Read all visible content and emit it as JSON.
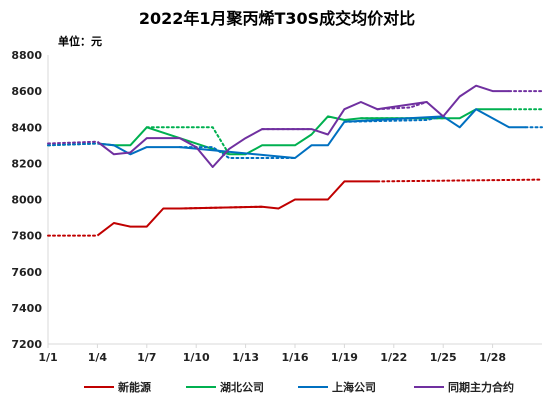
{
  "chart_data": {
    "type": "line",
    "title": "2022年1月聚丙烯T30S成交均价对比",
    "unit_label": "单位：元",
    "xlabel": "",
    "ylabel": "",
    "ylim": [
      7200,
      8800
    ],
    "yticks": [
      7200,
      7400,
      7600,
      7800,
      8000,
      8200,
      8400,
      8600,
      8800
    ],
    "x_range": [
      1,
      31
    ],
    "x_ticks": [
      {
        "day": 1,
        "label": "1/1"
      },
      {
        "day": 4,
        "label": "1/4"
      },
      {
        "day": 7,
        "label": "1/7"
      },
      {
        "day": 10,
        "label": "1/10"
      },
      {
        "day": 13,
        "label": "1/13"
      },
      {
        "day": 16,
        "label": "1/16"
      },
      {
        "day": 19,
        "label": "1/19"
      },
      {
        "day": 22,
        "label": "1/22"
      },
      {
        "day": 25,
        "label": "1/25"
      },
      {
        "day": 28,
        "label": "1/28"
      }
    ],
    "grid": false,
    "legend_position": "bottom",
    "series": [
      {
        "name": "新能源",
        "color": "#c00000",
        "values": [
          [
            4,
            7800
          ],
          [
            5,
            7870
          ],
          [
            6,
            7850
          ],
          [
            7,
            7850
          ],
          [
            8,
            7950
          ],
          [
            9,
            7950
          ],
          [
            14,
            7960
          ],
          [
            15,
            7950
          ],
          [
            16,
            8000
          ],
          [
            17,
            8000
          ],
          [
            18,
            8000
          ],
          [
            19,
            8100
          ],
          [
            20,
            8100
          ],
          [
            21,
            8100
          ]
        ],
        "gap_fills": [
          [
            [
              1,
              7800
            ],
            [
              4,
              7800
            ]
          ],
          [
            [
              9,
              7950
            ],
            [
              14,
              7960
            ]
          ],
          [
            [
              21,
              8100
            ],
            [
              31,
              8110
            ]
          ]
        ]
      },
      {
        "name": "湖北公司",
        "color": "#00b050",
        "values": [
          [
            4,
            8310
          ],
          [
            5,
            8300
          ],
          [
            6,
            8300
          ],
          [
            7,
            8400
          ],
          [
            12,
            8250
          ],
          [
            13,
            8250
          ],
          [
            14,
            8300
          ],
          [
            15,
            8300
          ],
          [
            16,
            8300
          ],
          [
            17,
            8360
          ],
          [
            18,
            8460
          ],
          [
            19,
            8440
          ],
          [
            20,
            8450
          ],
          [
            25,
            8450
          ],
          [
            26,
            8450
          ],
          [
            27,
            8500
          ],
          [
            28,
            8500
          ],
          [
            29,
            8500
          ]
        ],
        "gap_fills": [
          [
            [
              1,
              8300
            ],
            [
              4,
              8310
            ]
          ],
          [
            [
              7,
              8400
            ],
            [
              11,
              8400
            ],
            [
              12,
              8250
            ]
          ],
          [
            [
              20,
              8450
            ],
            [
              25,
              8450
            ]
          ],
          [
            [
              29,
              8500
            ],
            [
              31,
              8500
            ]
          ]
        ]
      },
      {
        "name": "上海公司",
        "color": "#0070c0",
        "values": [
          [
            4,
            8310
          ],
          [
            5,
            8300
          ],
          [
            6,
            8250
          ],
          [
            7,
            8290
          ],
          [
            8,
            8290
          ],
          [
            9,
            8290
          ],
          [
            16,
            8230
          ],
          [
            17,
            8300
          ],
          [
            18,
            8300
          ],
          [
            19,
            8430
          ],
          [
            25,
            8460
          ],
          [
            26,
            8400
          ],
          [
            27,
            8500
          ],
          [
            28,
            8450
          ],
          [
            29,
            8400
          ],
          [
            30,
            8400
          ]
        ],
        "gap_fills": [
          [
            [
              1,
              8300
            ],
            [
              4,
              8310
            ]
          ],
          [
            [
              9,
              8290
            ],
            [
              11,
              8290
            ],
            [
              12,
              8230
            ],
            [
              16,
              8230
            ]
          ],
          [
            [
              19,
              8430
            ],
            [
              24,
              8440
            ],
            [
              25,
              8460
            ]
          ],
          [
            [
              30,
              8400
            ],
            [
              31,
              8400
            ]
          ]
        ]
      },
      {
        "name": "同期主力合约",
        "color": "#7030a0",
        "values": [
          [
            4,
            8320
          ],
          [
            5,
            8250
          ],
          [
            6,
            8260
          ],
          [
            7,
            8340
          ],
          [
            8,
            8340
          ],
          [
            9,
            8340
          ],
          [
            10,
            8290
          ],
          [
            11,
            8180
          ],
          [
            12,
            8280
          ],
          [
            13,
            8340
          ],
          [
            14,
            8390
          ],
          [
            17,
            8390
          ],
          [
            18,
            8360
          ],
          [
            19,
            8500
          ],
          [
            20,
            8540
          ],
          [
            21,
            8500
          ],
          [
            24,
            8540
          ],
          [
            25,
            8460
          ],
          [
            26,
            8570
          ],
          [
            27,
            8630
          ],
          [
            28,
            8600
          ],
          [
            29,
            8600
          ]
        ],
        "gap_fills": [
          [
            [
              1,
              8310
            ],
            [
              4,
              8320
            ]
          ],
          [
            [
              14,
              8390
            ],
            [
              17,
              8390
            ]
          ],
          [
            [
              21,
              8500
            ],
            [
              23,
              8510
            ],
            [
              24,
              8540
            ]
          ],
          [
            [
              29,
              8600
            ],
            [
              31,
              8600
            ]
          ]
        ]
      }
    ]
  }
}
